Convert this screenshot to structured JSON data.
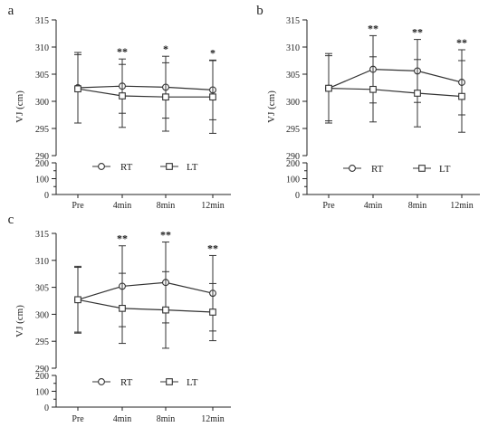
{
  "chart_data": [
    {
      "type": "line",
      "panel_label": "a",
      "categories": [
        "Pre",
        "4min",
        "8min",
        "12min"
      ],
      "ylabel": "VJ (cm)",
      "ylim_upper": [
        290,
        315
      ],
      "yticks_upper": [
        "290",
        "295",
        "300",
        "305",
        "310",
        "315"
      ],
      "ylim_lower": [
        0,
        200
      ],
      "yticks_lower": [
        "0",
        "100",
        "200"
      ],
      "series": [
        {
          "name": "RT",
          "marker": "circle",
          "values": [
            302.5,
            302.8,
            302.6,
            302.1
          ],
          "error": [
            6.5,
            5.0,
            5.7,
            5.5
          ]
        },
        {
          "name": "LT",
          "marker": "square",
          "values": [
            302.3,
            301.0,
            300.8,
            300.8
          ],
          "error": [
            6.3,
            5.8,
            6.3,
            6.7
          ]
        }
      ],
      "significance": [
        "",
        "**",
        "*",
        "*"
      ]
    },
    {
      "type": "line",
      "panel_label": "b",
      "categories": [
        "Pre",
        "4min",
        "8min",
        "12min"
      ],
      "ylabel": "VJ (cm)",
      "ylim_upper": [
        290,
        315
      ],
      "yticks_upper": [
        "290",
        "295",
        "300",
        "305",
        "310",
        "315"
      ],
      "ylim_lower": [
        0,
        200
      ],
      "yticks_lower": [
        "0",
        "100",
        "200"
      ],
      "series": [
        {
          "name": "RT",
          "marker": "circle",
          "values": [
            302.4,
            305.9,
            305.6,
            303.5
          ],
          "error": [
            6.4,
            6.2,
            5.8,
            6.0
          ]
        },
        {
          "name": "LT",
          "marker": "square",
          "values": [
            302.4,
            302.2,
            301.5,
            300.9
          ],
          "error": [
            6.0,
            6.0,
            6.2,
            6.6
          ]
        }
      ],
      "significance": [
        "",
        "**",
        "**",
        "**"
      ]
    },
    {
      "type": "line",
      "panel_label": "c",
      "categories": [
        "Pre",
        "4min",
        "8min",
        "12min"
      ],
      "ylabel": "VJ (cm)",
      "ylim_upper": [
        290,
        315
      ],
      "yticks_upper": [
        "290",
        "295",
        "300",
        "305",
        "310",
        "315"
      ],
      "ylim_lower": [
        0,
        200
      ],
      "yticks_lower": [
        "0",
        "100",
        "200"
      ],
      "series": [
        {
          "name": "RT",
          "marker": "circle",
          "values": [
            302.7,
            305.2,
            305.9,
            303.9
          ],
          "error": [
            6.2,
            7.5,
            7.5,
            7.0
          ]
        },
        {
          "name": "LT",
          "marker": "square",
          "values": [
            302.7,
            301.1,
            300.8,
            300.4
          ],
          "error": [
            6.0,
            6.5,
            7.1,
            5.3
          ]
        }
      ],
      "significance": [
        "",
        "**",
        "**",
        "**"
      ]
    }
  ],
  "colors": {
    "axis": "#222222",
    "series": "#333333",
    "background": "#ffffff"
  }
}
